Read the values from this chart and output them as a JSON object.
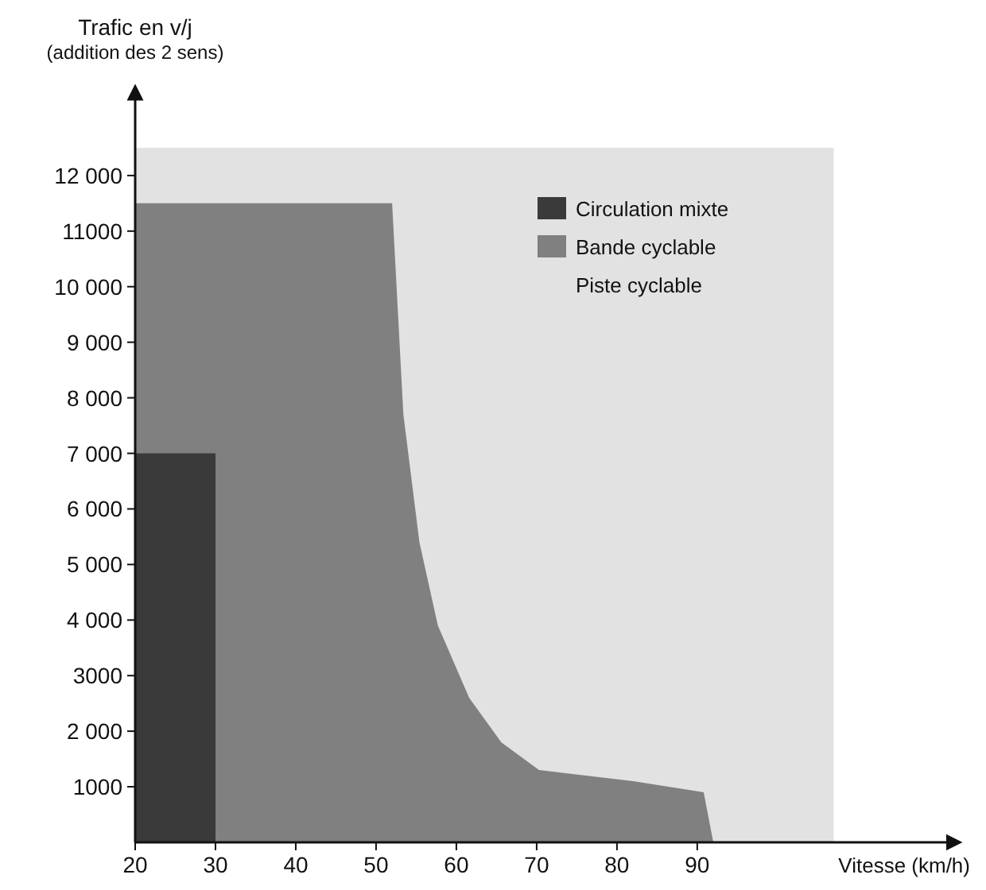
{
  "chart_data": {
    "type": "area",
    "ylabel": "Trafic en v/j\n(addition des 2 sens)",
    "xlabel": "Vitesse (km/h)",
    "xlim": [
      20,
      122
    ],
    "ylim": [
      0,
      13500
    ],
    "xticks": [
      20,
      30,
      40,
      50,
      60,
      70,
      80,
      90
    ],
    "yticks": [
      {
        "value": 1000,
        "label": "1000"
      },
      {
        "value": 2000,
        "label": "2 000"
      },
      {
        "value": 3000,
        "label": "3000"
      },
      {
        "value": 4000,
        "label": "4 000"
      },
      {
        "value": 5000,
        "label": "5 000"
      },
      {
        "value": 6000,
        "label": "6 000"
      },
      {
        "value": 7000,
        "label": "7 000"
      },
      {
        "value": 8000,
        "label": "8 000"
      },
      {
        "value": 9000,
        "label": "9 000"
      },
      {
        "value": 10000,
        "label": "10 000"
      },
      {
        "value": 11000,
        "label": "11000"
      },
      {
        "value": 12000,
        "label": "12 000"
      }
    ],
    "legend": "top right",
    "series": [
      {
        "name": "Circulation mixte",
        "color": "#3a3a3a",
        "x": [
          20,
          30
        ],
        "values": [
          7000,
          7000
        ]
      },
      {
        "name": "Bande cyclable",
        "color": "#808080",
        "x": [
          20,
          52,
          53.4,
          55.4,
          57.7,
          61.6,
          65.6,
          70.3,
          82,
          90.8,
          92
        ],
        "values": [
          11500,
          11500,
          7700,
          5400,
          3900,
          2600,
          1800,
          1300,
          1100,
          900,
          0
        ]
      },
      {
        "name": "Piste cyclable",
        "color": "#e2e2e2",
        "x": [
          20,
          107
        ],
        "values": [
          12500,
          12500
        ]
      }
    ]
  }
}
